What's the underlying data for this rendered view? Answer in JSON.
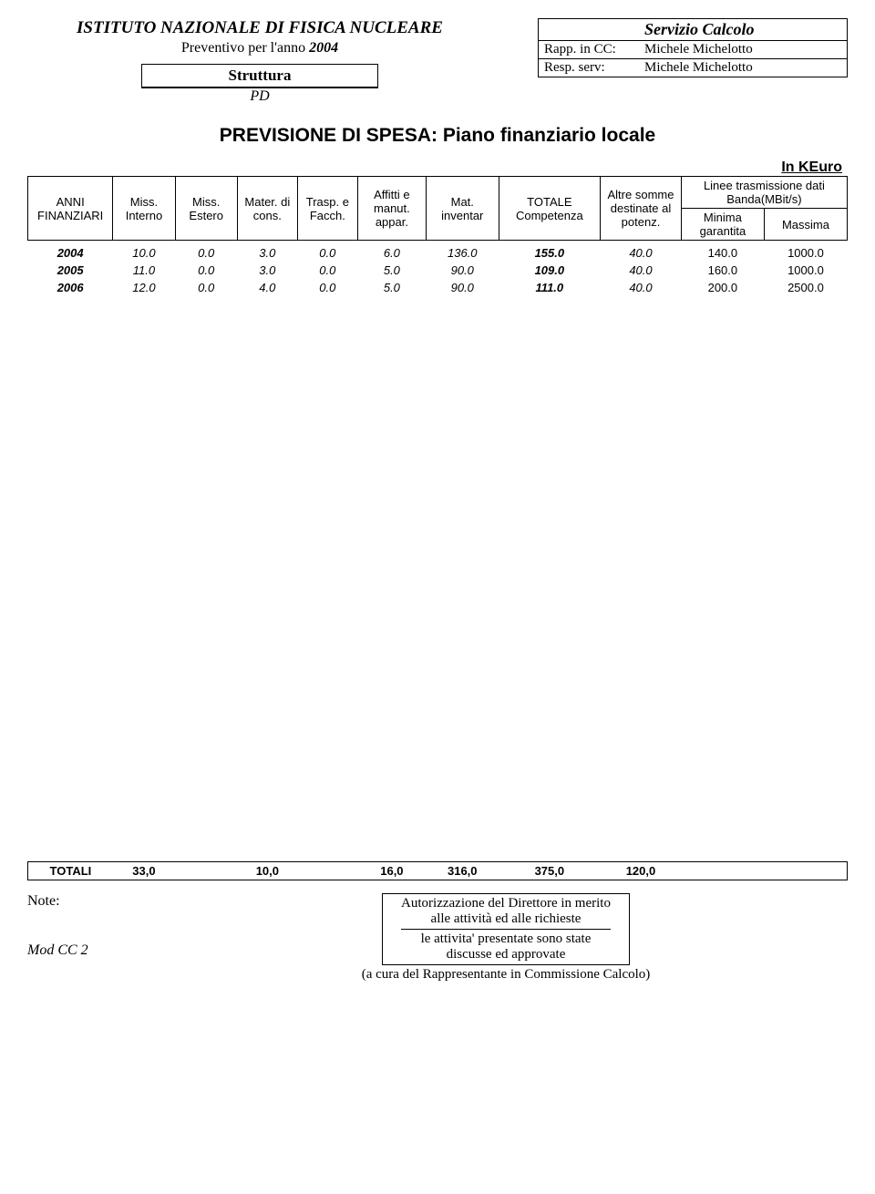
{
  "header": {
    "institution": "ISTITUTO NAZIONALE DI FISICA NUCLEARE",
    "preventivo_label": "Preventivo per l'anno",
    "anno": "2004",
    "struttura_label": "Struttura",
    "struttura_value": "PD",
    "servizio_title": "Servizio Calcolo",
    "rapp_label": "Rapp. in CC:",
    "rapp_value": "Michele Michelotto",
    "resp_label": "Resp. serv:",
    "resp_value": "Michele Michelotto"
  },
  "section_title": "PREVISIONE DI SPESA: Piano finanziario locale",
  "unit_label": "In KEuro",
  "columns": {
    "anni": "ANNI FINANZIARI",
    "miss_int": "Miss. Interno",
    "miss_est": "Miss. Estero",
    "mater": "Mater. di cons.",
    "trasp": "Trasp. e Facch.",
    "affitti": "Affitti e manut. appar.",
    "mat_inv": "Mat. inventar",
    "totale": "TOTALE Competenza",
    "altre": "Altre somme destinate al potenz.",
    "linee": "Linee trasmissione dati Banda(MBit/s)",
    "minima": "Minima garantita",
    "massima": "Massima"
  },
  "rows": [
    {
      "anno": "2004",
      "miss_int": "10.0",
      "miss_est": "0.0",
      "mater": "3.0",
      "trasp": "0.0",
      "affitti": "6.0",
      "mat_inv": "136.0",
      "totale": "155.0",
      "altre": "40.0",
      "minima": "140.0",
      "massima": "1000.0"
    },
    {
      "anno": "2005",
      "miss_int": "11.0",
      "miss_est": "0.0",
      "mater": "3.0",
      "trasp": "0.0",
      "affitti": "5.0",
      "mat_inv": "90.0",
      "totale": "109.0",
      "altre": "40.0",
      "minima": "160.0",
      "massima": "1000.0"
    },
    {
      "anno": "2006",
      "miss_int": "12.0",
      "miss_est": "0.0",
      "mater": "4.0",
      "trasp": "0.0",
      "affitti": "5.0",
      "mat_inv": "90.0",
      "totale": "111.0",
      "altre": "40.0",
      "minima": "200.0",
      "massima": "2500.0"
    }
  ],
  "totals": {
    "label": "TOTALI",
    "miss_int": "33,0",
    "miss_est": "",
    "mater": "10,0",
    "trasp": "",
    "affitti": "16,0",
    "mat_inv": "316,0",
    "totale": "375,0",
    "altre": "120,0",
    "minima": "",
    "massima": ""
  },
  "footer": {
    "note_label": "Note:",
    "auth_line1": "Autorizzazione del Direttore in merito",
    "auth_line2": "alle attività ed alle richieste",
    "auth_line3": "le attivita' presentate sono state",
    "auth_line4": "discusse ed approvate",
    "mod_label": "Mod CC 2",
    "cura": "(a cura del Rappresentante in Commissione Calcolo)"
  }
}
